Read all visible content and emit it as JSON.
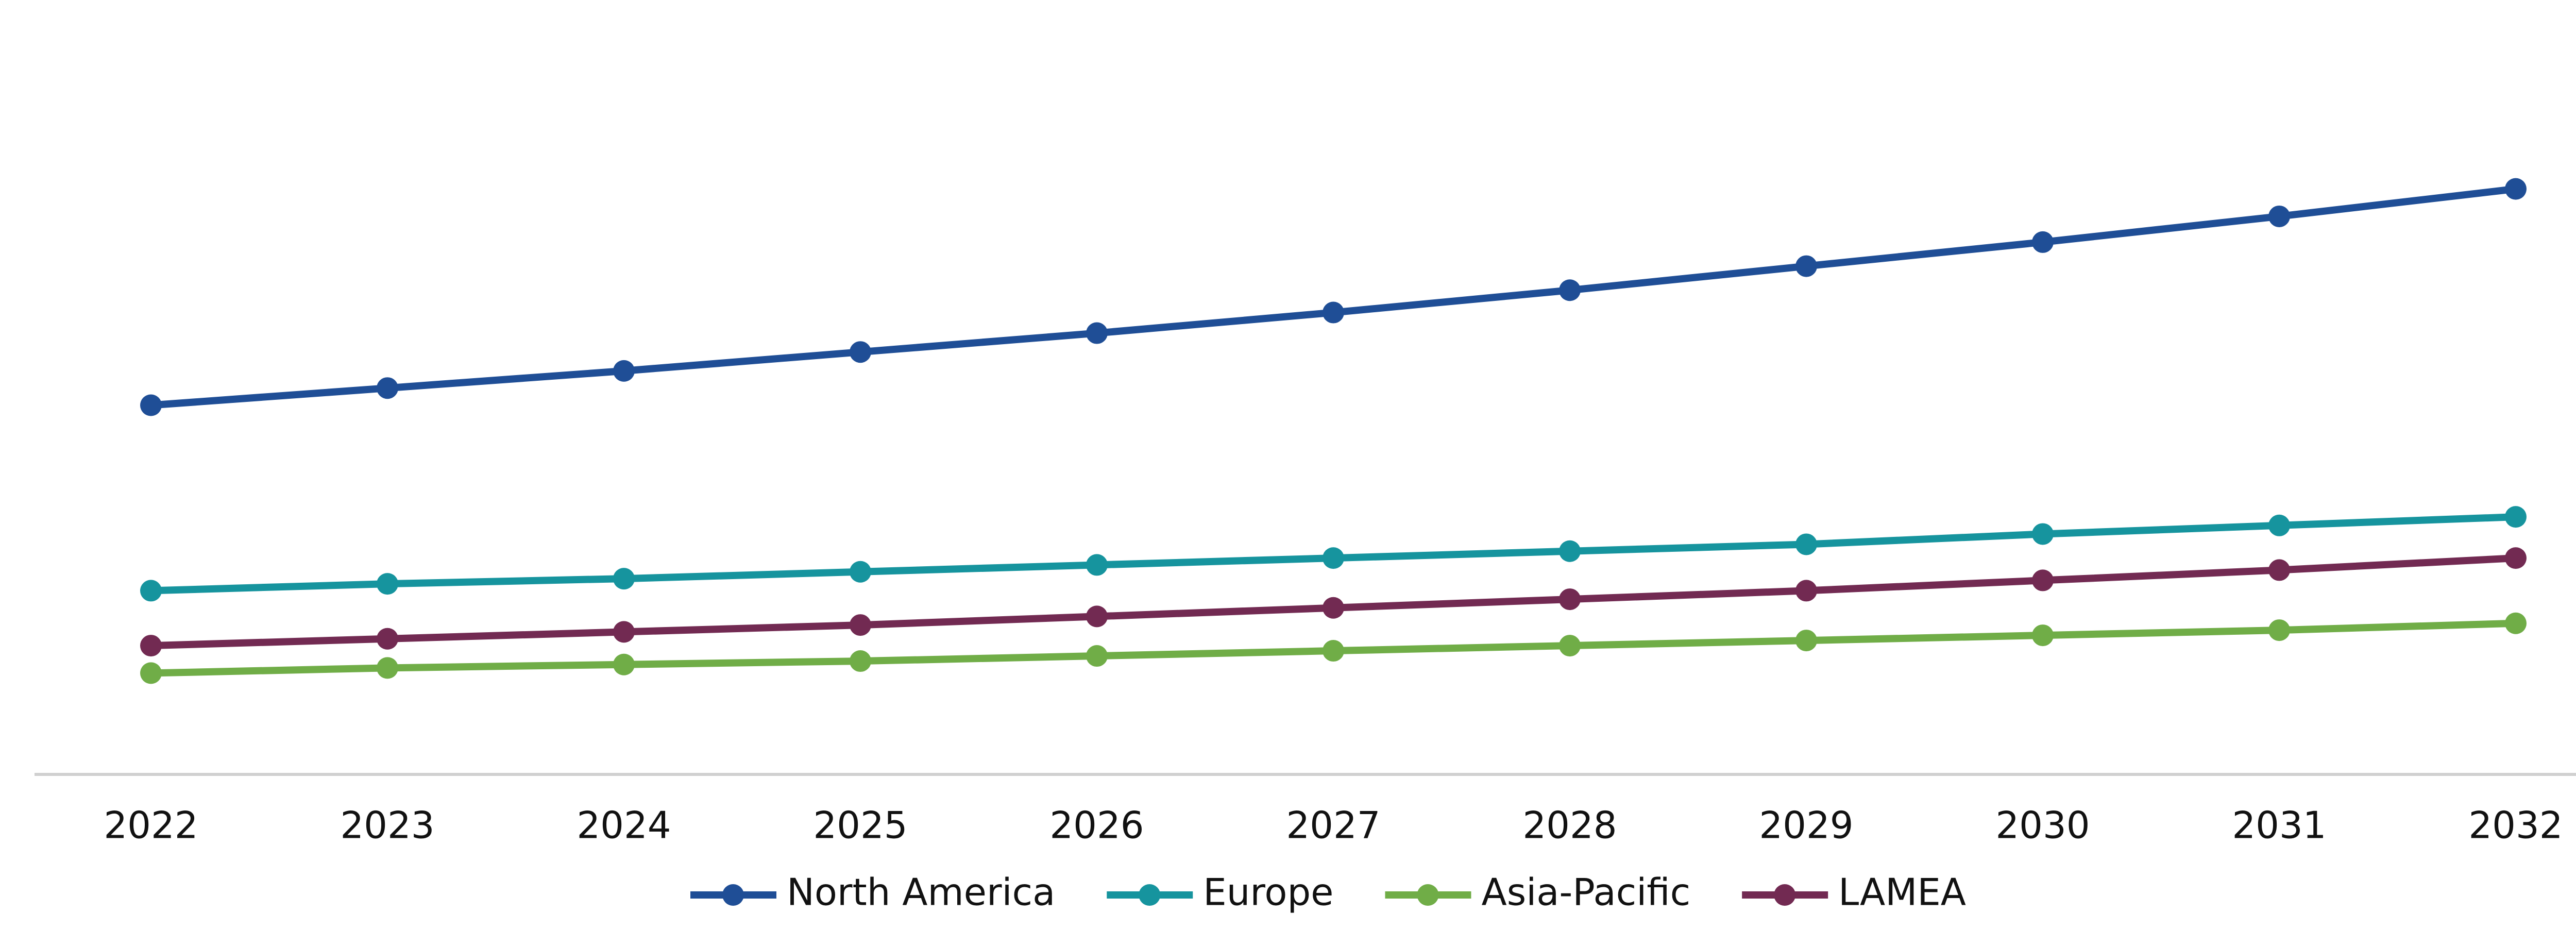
{
  "chart_data": {
    "type": "line",
    "categories": [
      "2022",
      "2023",
      "2024",
      "2025",
      "2026",
      "2027",
      "2028",
      "2029",
      "2030",
      "2031",
      "2032"
    ],
    "series": [
      {
        "name": "North America",
        "color": "#1f4e96",
        "values": [
          215,
          225,
          235,
          246,
          257,
          269,
          282,
          296,
          310,
          325,
          341
        ]
      },
      {
        "name": "Europe",
        "color": "#16949e",
        "values": [
          107,
          111,
          114,
          118,
          122,
          126,
          130,
          134,
          140,
          145,
          150
        ]
      },
      {
        "name": "Asia-Pacific",
        "color": "#70ad47",
        "values": [
          59,
          62,
          64,
          66,
          69,
          72,
          75,
          78,
          81,
          84,
          88
        ]
      },
      {
        "name": "LAMEA",
        "color": "#722a52",
        "values": [
          75,
          79,
          83,
          87,
          92,
          97,
          102,
          107,
          113,
          119,
          126
        ]
      }
    ],
    "ylim": [
      0,
      400
    ],
    "legend": "bottom"
  }
}
